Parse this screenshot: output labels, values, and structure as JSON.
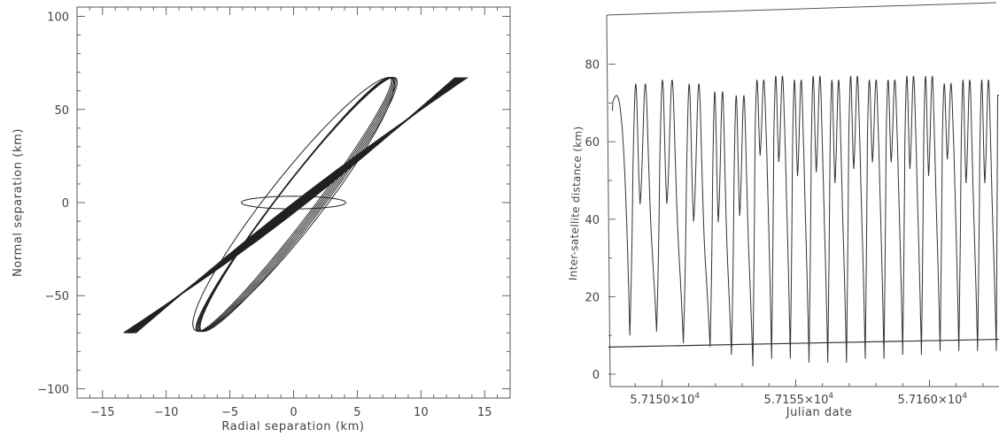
{
  "chart_data": [
    {
      "type": "line",
      "xlabel": "Radial separation (km)",
      "ylabel": "Normal separation (km)",
      "xlim": [
        -17,
        17
      ],
      "ylim": [
        -105,
        105
      ],
      "x_ticks": [
        -15,
        -10,
        -5,
        0,
        5,
        10,
        15
      ],
      "y_ticks": [
        -100,
        -50,
        0,
        50,
        100
      ],
      "x_tick_labels": [
        "−15",
        "−10",
        "−5",
        "0",
        "5",
        "10",
        "15"
      ],
      "y_tick_labels": [
        "−100",
        "−50",
        "0",
        "50",
        "100"
      ],
      "grid": false,
      "series": [
        {
          "description_role": "thick-diagonal-band",
          "x": [
            -13,
            -11.6,
            -10.2,
            -8.8,
            -7.4,
            -6,
            -4.6,
            -3.2,
            -1.8,
            -0.4,
            1,
            2.4,
            3.8,
            5.2,
            6.6,
            8,
            9.4,
            10.8,
            12.2,
            13
          ],
          "y": [
            -70,
            -62,
            -55,
            -47,
            -38,
            -29,
            -20,
            -11,
            -2,
            7,
            16,
            25,
            33,
            41,
            48,
            55,
            61,
            65,
            67,
            67
          ]
        },
        {
          "description_role": "tall-ellipse-loops",
          "x": [
            -7.8,
            -6.7,
            -5.2,
            -3.3,
            -1.2,
            0.9,
            2.9,
            4.6,
            5.9,
            6.8,
            7.2,
            7.6
          ],
          "y": [
            -70,
            -58,
            -42,
            -24,
            -6,
            12,
            29,
            44,
            56,
            63,
            67,
            67
          ]
        },
        {
          "description_role": "flat-ellipse",
          "x": [
            -4,
            -2,
            0,
            2,
            4
          ],
          "y": [
            0,
            3,
            3.5,
            3,
            0
          ]
        }
      ]
    },
    {
      "type": "line",
      "xlabel": "Julian date",
      "ylabel": "Inter-satellite distance (km)",
      "xlim": [
        57148,
        57162.6
      ],
      "ylim": [
        -3,
        84
      ],
      "x_ticks": [
        57150,
        57155,
        57160
      ],
      "x_tick_mantissas": [
        "5.7150",
        "5.7155",
        "5.7160"
      ],
      "x_tick_base": "×10",
      "x_tick_exponent": "4",
      "y_ticks": [
        0,
        20,
        40,
        60,
        80
      ],
      "y_tick_labels": [
        "0",
        "20",
        "40",
        "60",
        "80"
      ],
      "grid": false,
      "series": [
        {
          "description_role": "distance-oscillation",
          "minima_x": [
            57148.8,
            57149.8,
            57150.8,
            57151.8,
            57152.6,
            57153.4,
            57154.1,
            57154.8,
            57155.5,
            57156.2,
            57156.9,
            57157.6,
            57158.3,
            57159.0,
            57159.7,
            57160.4,
            57161.1,
            57161.8,
            57162.5
          ],
          "minima_y": [
            10,
            11,
            8,
            7,
            5,
            2,
            4,
            4,
            3,
            3,
            3,
            4,
            4,
            5,
            5,
            6,
            6,
            6,
            6
          ],
          "peak_heights": [
            72,
            75,
            76,
            75,
            73,
            72,
            76,
            77,
            76,
            77,
            76,
            77,
            76,
            76,
            77,
            77,
            75,
            76,
            76,
            76
          ],
          "mid_dips": [
            39,
            40,
            40,
            35,
            35,
            37,
            54,
            52,
            48,
            49,
            46,
            50,
            52,
            52,
            50,
            48,
            53,
            46,
            46
          ]
        },
        {
          "description_role": "baseline-trend",
          "x": [
            57148,
            57162.6
          ],
          "y": [
            7,
            9
          ]
        }
      ]
    }
  ]
}
